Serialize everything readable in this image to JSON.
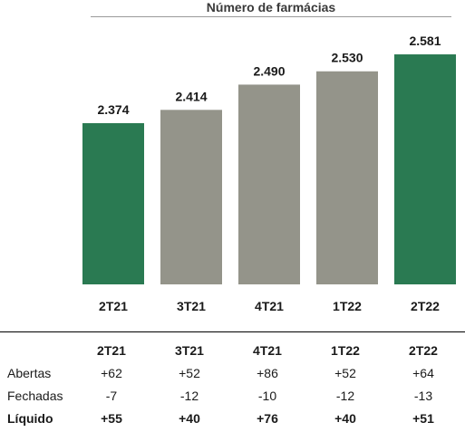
{
  "chart_data": {
    "type": "bar",
    "title": "Número de farmácias",
    "categories": [
      "2T21",
      "3T21",
      "4T21",
      "1T22",
      "2T22"
    ],
    "values": [
      2374,
      2414,
      2490,
      2530,
      2581
    ],
    "value_labels": [
      "2.374",
      "2.414",
      "2.490",
      "2.530",
      "2.581"
    ],
    "bar_colors": [
      "#2a7a52",
      "#94948a",
      "#94948a",
      "#94948a",
      "#2a7a52"
    ],
    "xlabel": "",
    "ylabel": "",
    "grid": false
  },
  "table": {
    "header": [
      "",
      "2T21",
      "3T21",
      "4T21",
      "1T22",
      "2T22"
    ],
    "rows": [
      {
        "label": "Abertas",
        "values": [
          "+62",
          "+52",
          "+86",
          "+52",
          "+64"
        ]
      },
      {
        "label": "Fechadas",
        "values": [
          "-7",
          "-12",
          "-10",
          "-12",
          "-13"
        ]
      },
      {
        "label": "Líquido",
        "values": [
          "+55",
          "+40",
          "+76",
          "+40",
          "+51"
        ]
      }
    ]
  }
}
